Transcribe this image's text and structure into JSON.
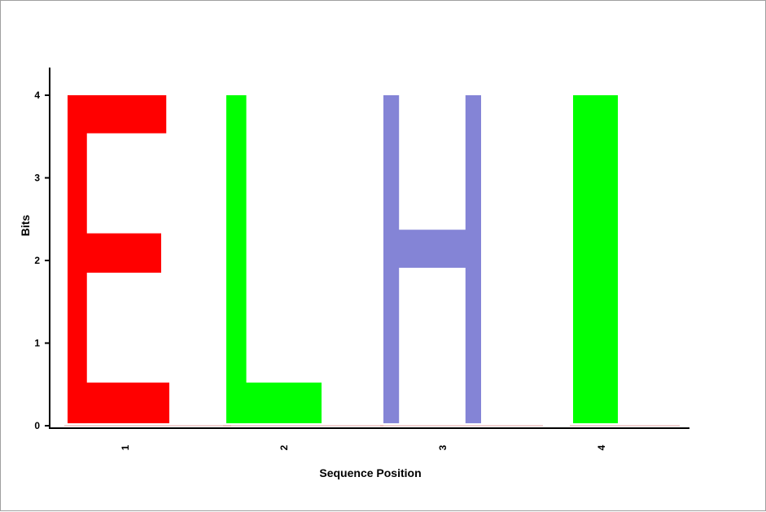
{
  "chart_data": {
    "type": "sequence-logo",
    "xlabel": "Sequence Position",
    "ylabel": "Bits",
    "ylim": [
      0,
      4.0
    ],
    "yticks": [
      "0",
      "1",
      "2",
      "3",
      "4"
    ],
    "positions": [
      {
        "label": "1",
        "letter": "E",
        "bits": 4.0,
        "color": "#ff0000"
      },
      {
        "label": "2",
        "letter": "L",
        "bits": 4.0,
        "color": "#00ff00"
      },
      {
        "label": "3",
        "letter": "H",
        "bits": 4.0,
        "color": "#8484d6"
      },
      {
        "label": "4",
        "letter": "I",
        "bits": 4.0,
        "color": "#00ff00"
      }
    ]
  }
}
